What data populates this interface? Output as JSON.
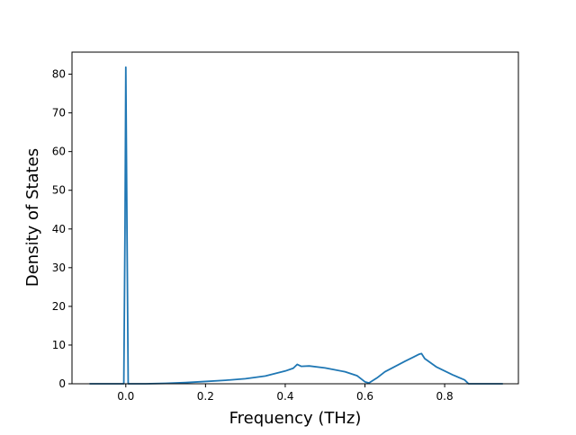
{
  "chart_data": {
    "type": "line",
    "title": "",
    "xlabel": "Frequency (THz)",
    "ylabel": "Density of States",
    "xlim": [
      -0.135,
      0.985
    ],
    "ylim": [
      0,
      85.7
    ],
    "grid": false,
    "xticks": [
      0.0,
      0.2,
      0.4,
      0.6,
      0.8
    ],
    "xtick_labels": [
      "0.0",
      "0.2",
      "0.4",
      "0.6",
      "0.8"
    ],
    "yticks": [
      0,
      10,
      20,
      30,
      40,
      50,
      60,
      70,
      80
    ],
    "ytick_labels": [
      "0",
      "10",
      "20",
      "30",
      "40",
      "50",
      "60",
      "70",
      "80"
    ],
    "series": [
      {
        "color": "#1f77b4",
        "x": [
          -0.09,
          -0.005,
          -0.002,
          0.0,
          0.003,
          0.006,
          0.05,
          0.1,
          0.15,
          0.2,
          0.25,
          0.3,
          0.35,
          0.4,
          0.42,
          0.43,
          0.44,
          0.46,
          0.5,
          0.55,
          0.58,
          0.6,
          0.61,
          0.63,
          0.65,
          0.7,
          0.72,
          0.735,
          0.742,
          0.75,
          0.78,
          0.82,
          0.85,
          0.86,
          0.9,
          0.945
        ],
        "y": [
          0,
          0,
          40,
          81.8,
          40,
          0,
          0,
          0.1,
          0.3,
          0.6,
          0.9,
          1.3,
          2.0,
          3.3,
          4.0,
          5.0,
          4.5,
          4.6,
          4.1,
          3.1,
          2.1,
          0.5,
          0.2,
          1.5,
          3.1,
          5.8,
          6.8,
          7.6,
          7.8,
          6.5,
          4.3,
          2.3,
          1.0,
          0.0,
          0.0,
          0.0
        ]
      }
    ]
  }
}
